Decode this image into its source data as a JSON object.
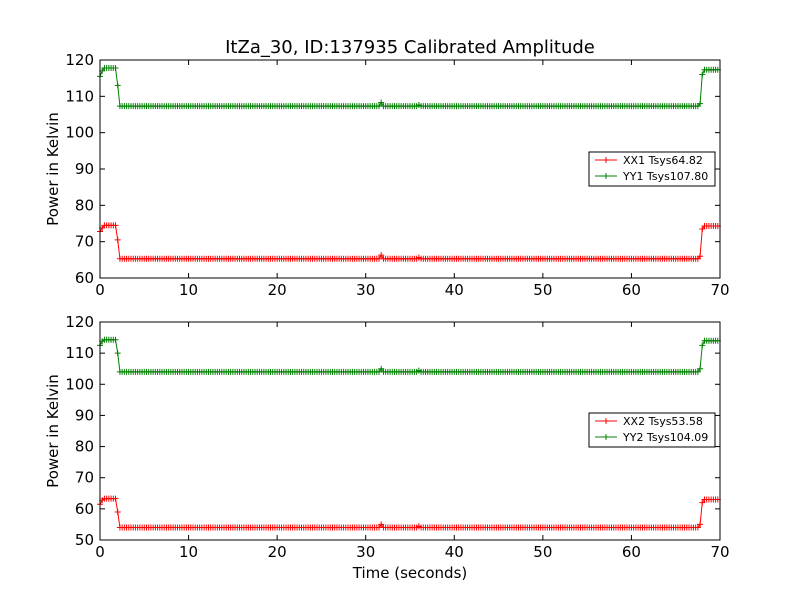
{
  "title": "ItZa_30, ID:137935 Calibrated Amplitude",
  "colors": {
    "xx": "#ff0000",
    "yy": "#008000"
  },
  "chart_data": [
    {
      "type": "line",
      "xlabel": "",
      "ylabel": "Power in Kelvin",
      "xlim": [
        0,
        70
      ],
      "ylim": [
        60,
        120
      ],
      "xticks": [
        0,
        10,
        20,
        30,
        40,
        50,
        60,
        70
      ],
      "yticks": [
        60,
        70,
        80,
        90,
        100,
        110,
        120
      ],
      "grid": false,
      "legend_position": "right",
      "x_step": 0.25,
      "series": [
        {
          "name": "XX1 Tsys64.82",
          "color": "#ff0000",
          "marker": "+",
          "segments": [
            {
              "x": [
                0,
                0.25
              ],
              "values": [
                72.8,
                73.8
              ]
            },
            {
              "x": [
                0.5,
                1.75
              ],
              "value": 74.5
            },
            {
              "x": [
                2.0
              ],
              "values": [
                70.5
              ]
            },
            {
              "x": [
                2.25,
                67.5
              ],
              "value": 65.3
            },
            {
              "x": [
                67.75
              ],
              "values": [
                66.0
              ]
            },
            {
              "x": [
                68.0
              ],
              "values": [
                73.5
              ]
            },
            {
              "x": [
                68.25,
                69.75
              ],
              "value": 74.3
            }
          ],
          "spikes": [
            {
              "x": 31.75,
              "value": 66.3
            },
            {
              "x": 36.0,
              "value": 65.6
            }
          ]
        },
        {
          "name": "YY1 Tsys107.80",
          "color": "#008000",
          "marker": "+",
          "segments": [
            {
              "x": [
                0,
                0.25
              ],
              "values": [
                115.5,
                117.0
              ]
            },
            {
              "x": [
                0.5,
                1.75
              ],
              "value": 117.8
            },
            {
              "x": [
                2.0
              ],
              "values": [
                113.0
              ]
            },
            {
              "x": [
                2.25,
                67.5
              ],
              "value": 107.3
            },
            {
              "x": [
                67.75
              ],
              "values": [
                108.0
              ]
            },
            {
              "x": [
                68.0
              ],
              "values": [
                116.0
              ]
            },
            {
              "x": [
                68.25,
                69.75
              ],
              "value": 117.3
            }
          ],
          "spikes": [
            {
              "x": 31.75,
              "value": 108.3
            },
            {
              "x": 36.0,
              "value": 107.6
            }
          ]
        }
      ]
    },
    {
      "type": "line",
      "xlabel": "Time (seconds)",
      "ylabel": "Power in Kelvin",
      "xlim": [
        0,
        70
      ],
      "ylim": [
        50,
        120
      ],
      "xticks": [
        0,
        10,
        20,
        30,
        40,
        50,
        60,
        70
      ],
      "yticks": [
        50,
        60,
        70,
        80,
        90,
        100,
        110,
        120
      ],
      "grid": false,
      "legend_position": "right",
      "x_step": 0.25,
      "series": [
        {
          "name": "XX2 Tsys53.58",
          "color": "#ff0000",
          "marker": "+",
          "segments": [
            {
              "x": [
                0,
                0.25
              ],
              "values": [
                61.5,
                62.8
              ]
            },
            {
              "x": [
                0.5,
                1.75
              ],
              "value": 63.3
            },
            {
              "x": [
                2.0
              ],
              "values": [
                59.0
              ]
            },
            {
              "x": [
                2.25,
                67.5
              ],
              "value": 54.0
            },
            {
              "x": [
                67.75
              ],
              "values": [
                55.0
              ]
            },
            {
              "x": [
                68.0
              ],
              "values": [
                62.0
              ]
            },
            {
              "x": [
                68.25,
                69.75
              ],
              "value": 63.0
            }
          ],
          "spikes": [
            {
              "x": 31.75,
              "value": 55.0
            },
            {
              "x": 36.0,
              "value": 54.4
            }
          ]
        },
        {
          "name": "YY2 Tsys104.09",
          "color": "#008000",
          "marker": "+",
          "segments": [
            {
              "x": [
                0,
                0.25
              ],
              "values": [
                112.5,
                113.8
              ]
            },
            {
              "x": [
                0.5,
                1.75
              ],
              "value": 114.3
            },
            {
              "x": [
                2.0
              ],
              "values": [
                110.0
              ]
            },
            {
              "x": [
                2.25,
                67.5
              ],
              "value": 104.0
            },
            {
              "x": [
                67.75
              ],
              "values": [
                105.0
              ]
            },
            {
              "x": [
                68.0
              ],
              "values": [
                112.5
              ]
            },
            {
              "x": [
                68.25,
                69.75
              ],
              "value": 114.0
            }
          ],
          "spikes": [
            {
              "x": 31.75,
              "value": 105.0
            },
            {
              "x": 36.0,
              "value": 104.4
            }
          ]
        }
      ]
    }
  ]
}
